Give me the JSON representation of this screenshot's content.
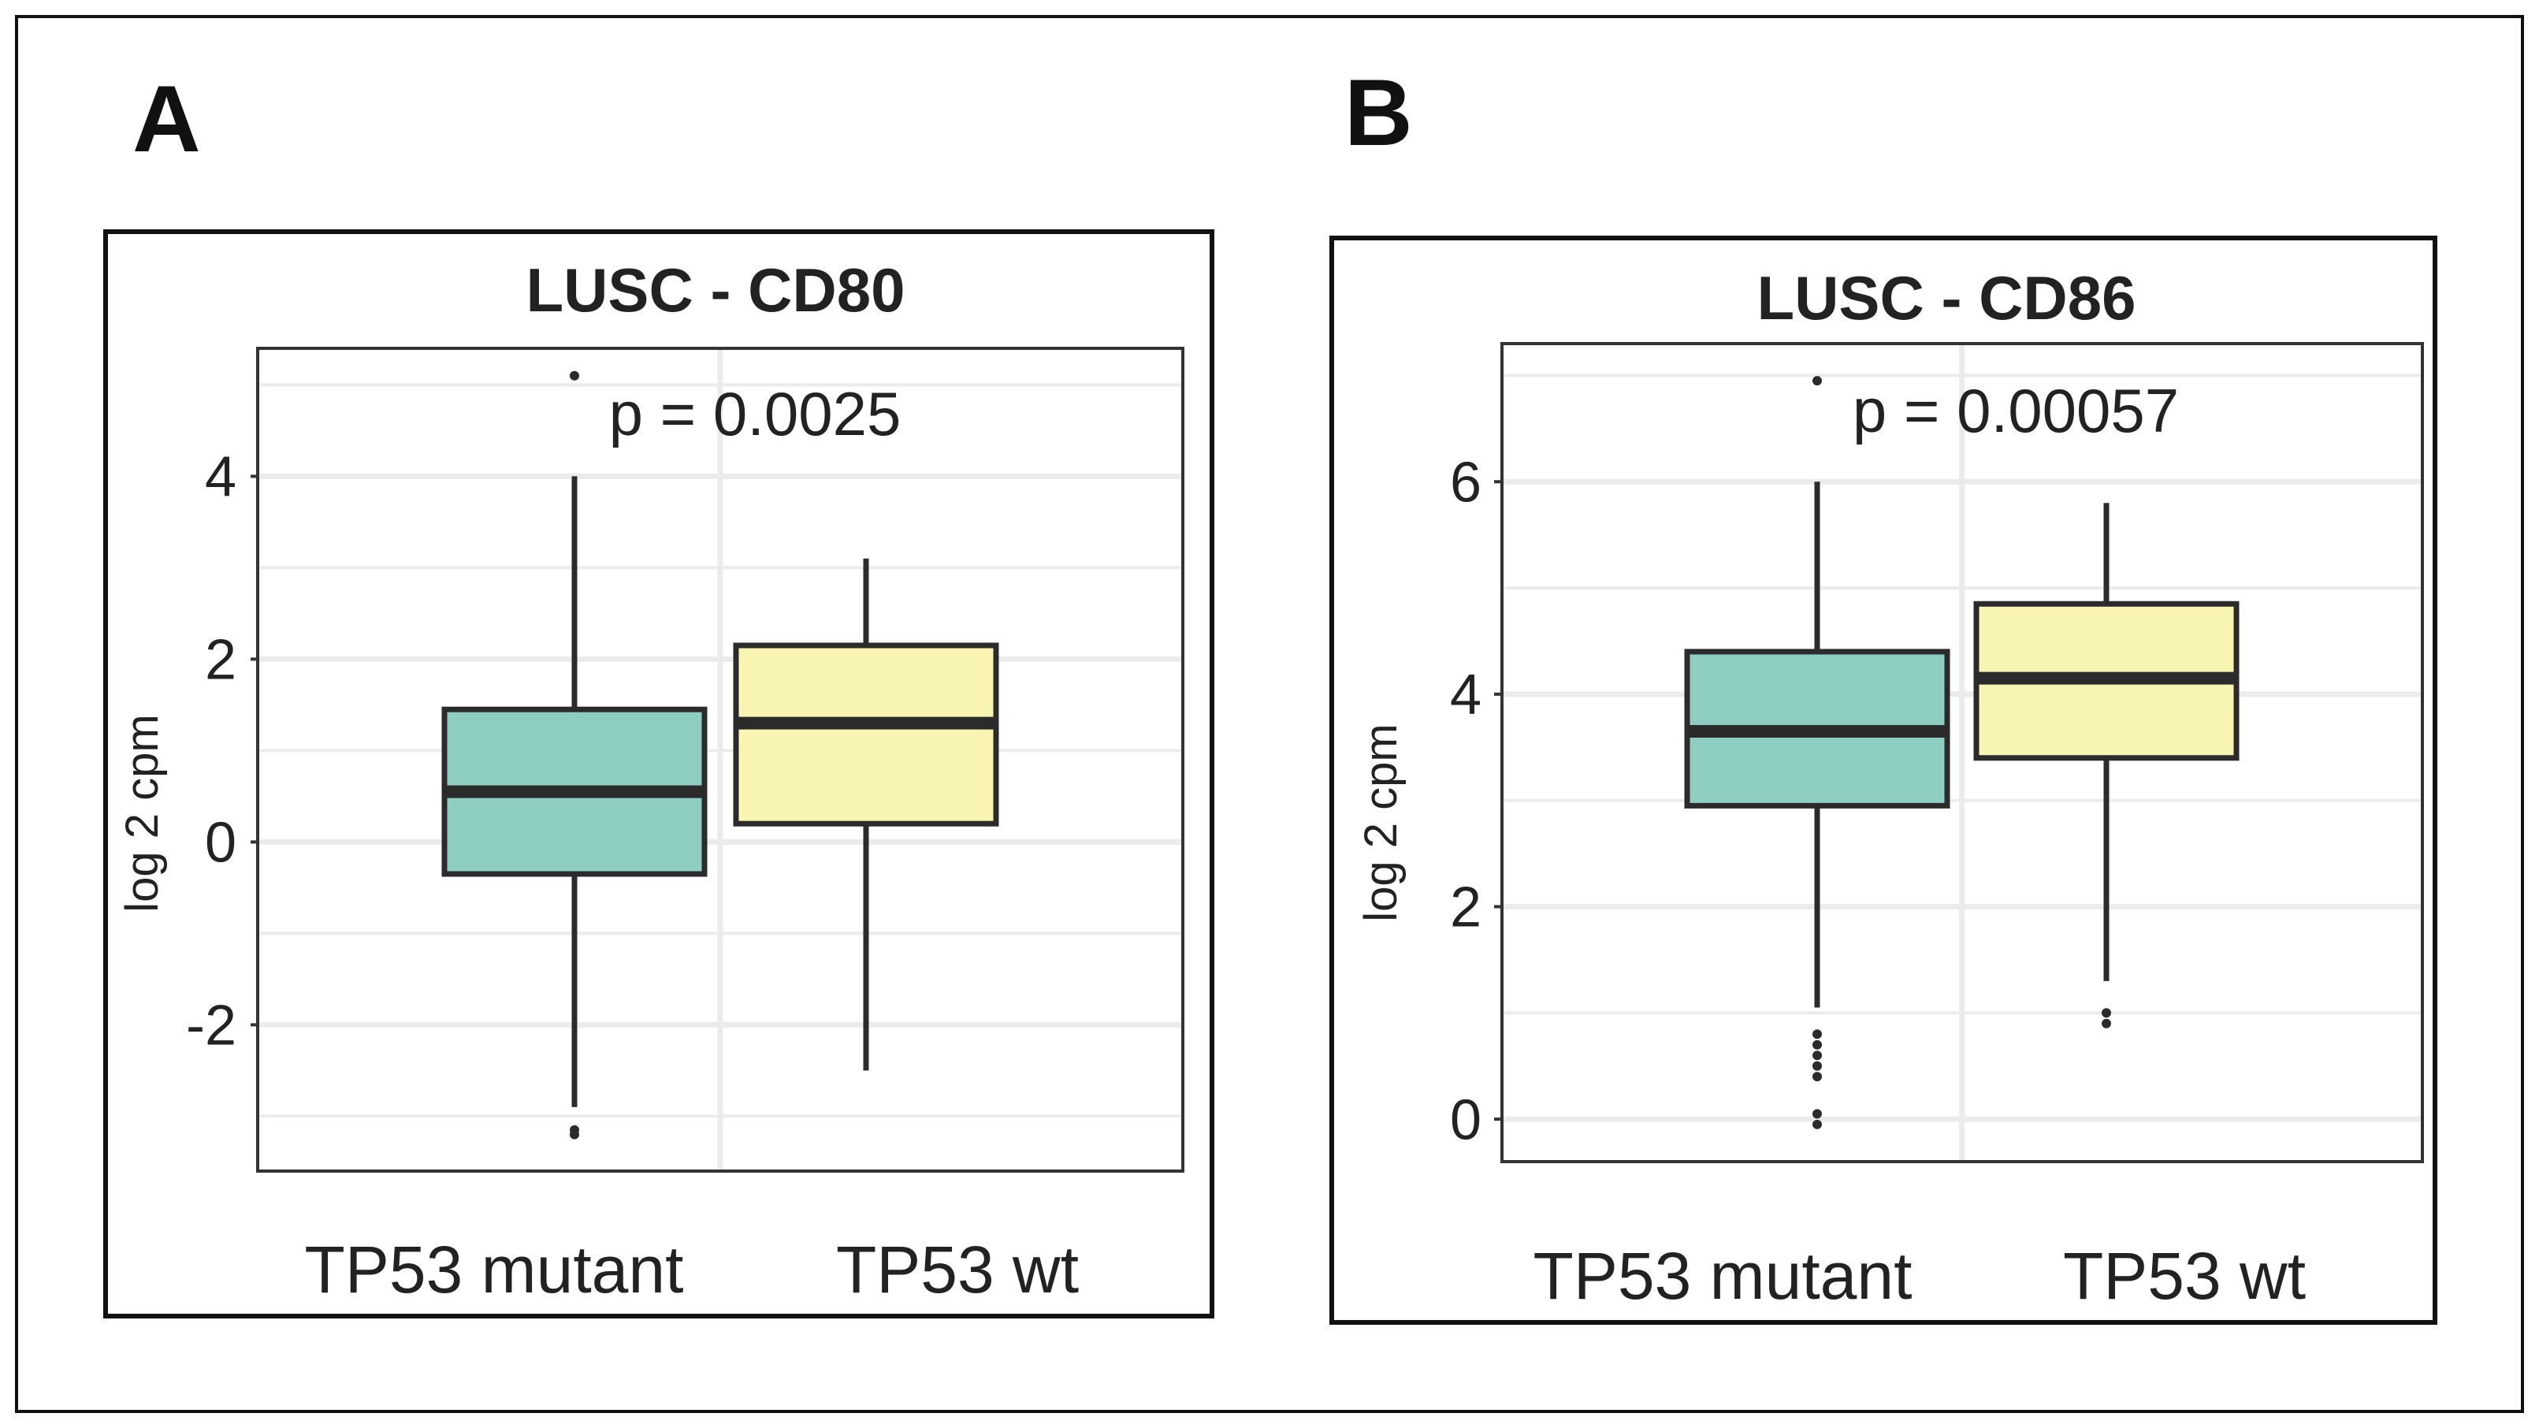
{
  "panel_letters": [
    "A",
    "B"
  ],
  "chart_data": [
    {
      "type": "box",
      "title": "LUSC - CD80",
      "ylabel": "log 2 cpm",
      "ylim": [
        -3.6,
        5.4
      ],
      "yticks": [
        -2,
        0,
        2,
        4
      ],
      "ytick_labels": [
        "-2",
        "0",
        "2",
        "4"
      ],
      "grid": true,
      "annotation": "p = 0.0025",
      "categories": [
        "TP53 mutant",
        "TP53 wt"
      ],
      "colors": [
        "#8ecdc2",
        "#f8f4b2"
      ],
      "boxes": [
        {
          "category": "TP53 mutant",
          "lower_whisker": -2.9,
          "q1": -0.35,
          "median": 0.55,
          "q3": 1.45,
          "upper_whisker": 4.0,
          "outliers": [
            5.1,
            -3.15,
            -3.2
          ]
        },
        {
          "category": "TP53 wt",
          "lower_whisker": -2.5,
          "q1": 0.2,
          "median": 1.3,
          "q3": 2.15,
          "upper_whisker": 3.1,
          "outliers": []
        }
      ]
    },
    {
      "type": "box",
      "title": "LUSC - CD86",
      "ylabel": "log 2 cpm",
      "ylim": [
        -0.4,
        7.3
      ],
      "yticks": [
        0,
        2,
        4,
        6
      ],
      "ytick_labels": [
        "0",
        "2",
        "4",
        "6"
      ],
      "grid": true,
      "annotation": "p = 0.00057",
      "categories": [
        "TP53 mutant",
        "TP53 wt"
      ],
      "colors": [
        "#8ecdc2",
        "#f8f4b2"
      ],
      "boxes": [
        {
          "category": "TP53 mutant",
          "lower_whisker": 1.05,
          "q1": 2.95,
          "median": 3.65,
          "q3": 4.4,
          "upper_whisker": 6.0,
          "outliers": [
            6.95,
            0.8,
            0.7,
            0.6,
            0.5,
            0.4,
            0.05,
            -0.05
          ]
        },
        {
          "category": "TP53 wt",
          "lower_whisker": 1.3,
          "q1": 3.4,
          "median": 4.15,
          "q3": 4.85,
          "upper_whisker": 5.8,
          "outliers": [
            1.0,
            0.9
          ]
        }
      ]
    }
  ]
}
